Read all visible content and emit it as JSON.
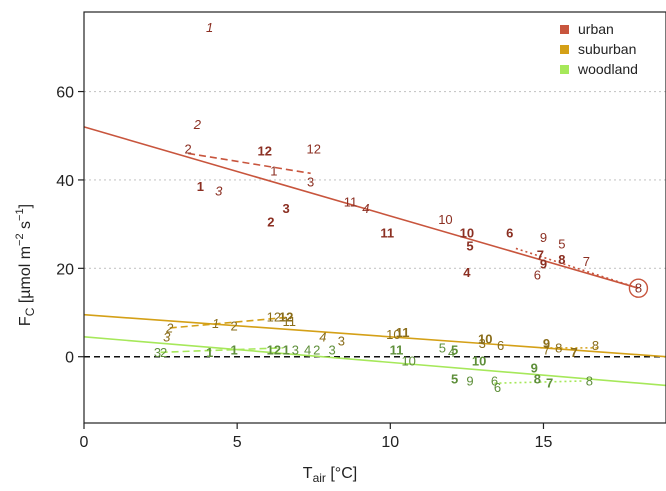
{
  "chart_data": {
    "type": "scatter",
    "xlabel": {
      "main": "T",
      "sub": "air",
      "unit": " [°C]"
    },
    "ylabel": {
      "main": "F",
      "sub": "C",
      "unit_pre": " [µmol m",
      "sup1": "−2",
      "mid": " s",
      "sup2": "−1",
      "unit_post": "]"
    },
    "xlim": [
      0,
      19
    ],
    "ylim": [
      -15,
      78
    ],
    "x_ticks": [
      0,
      5,
      10,
      15
    ],
    "y_ticks": [
      0,
      20,
      40,
      60
    ],
    "y_grid": [
      20,
      40,
      60
    ],
    "zero_line": true,
    "legend": {
      "position": "top-right"
    },
    "series": [
      {
        "name": "urban",
        "color": "#c8553d",
        "text_color": "#8b2f22",
        "points": [
          {
            "m": "1",
            "x": 4.1,
            "y": 74.5,
            "style": "italic"
          },
          {
            "m": "2",
            "x": 3.7,
            "y": 52.5,
            "style": "italic"
          },
          {
            "m": "2",
            "x": 3.4,
            "y": 47.0,
            "style": "normal"
          },
          {
            "m": "12",
            "x": 5.9,
            "y": 46.5,
            "style": "bold"
          },
          {
            "m": "12",
            "x": 7.5,
            "y": 47.0,
            "style": "normal"
          },
          {
            "m": "1",
            "x": 6.2,
            "y": 42.0,
            "style": "normal"
          },
          {
            "m": "3",
            "x": 7.4,
            "y": 39.5,
            "style": "normal"
          },
          {
            "m": "1",
            "x": 3.8,
            "y": 38.5,
            "style": "bold"
          },
          {
            "m": "3",
            "x": 4.4,
            "y": 37.5,
            "style": "italic"
          },
          {
            "m": "11",
            "x": 8.7,
            "y": 35.0,
            "style": "normal"
          },
          {
            "m": "4",
            "x": 9.2,
            "y": 33.5,
            "style": "italic"
          },
          {
            "m": "3",
            "x": 6.6,
            "y": 33.5,
            "style": "bold"
          },
          {
            "m": "2",
            "x": 6.1,
            "y": 30.5,
            "style": "bold"
          },
          {
            "m": "11",
            "x": 9.9,
            "y": 28.0,
            "style": "bold"
          },
          {
            "m": "10",
            "x": 11.8,
            "y": 31.0,
            "style": "normal"
          },
          {
            "m": "10",
            "x": 12.5,
            "y": 28.0,
            "style": "bold"
          },
          {
            "m": "5",
            "x": 12.6,
            "y": 25.0,
            "style": "bold"
          },
          {
            "m": "6",
            "x": 13.9,
            "y": 28.0,
            "style": "bold"
          },
          {
            "m": "9",
            "x": 15.0,
            "y": 27.0,
            "style": "normal"
          },
          {
            "m": "5",
            "x": 15.6,
            "y": 25.5,
            "style": "normal"
          },
          {
            "m": "7",
            "x": 14.9,
            "y": 23.0,
            "style": "bold"
          },
          {
            "m": "9",
            "x": 15.0,
            "y": 21.0,
            "style": "bold"
          },
          {
            "m": "8",
            "x": 15.6,
            "y": 22.0,
            "style": "bold"
          },
          {
            "m": "7",
            "x": 16.4,
            "y": 21.5,
            "style": "normal"
          },
          {
            "m": "6",
            "x": 14.8,
            "y": 18.5,
            "style": "normal"
          },
          {
            "m": "4",
            "x": 12.5,
            "y": 19.0,
            "style": "bold"
          },
          {
            "m": "8",
            "x": 18.1,
            "y": 15.5,
            "style": "normal",
            "circled": true
          }
        ]
      },
      {
        "name": "suburban",
        "color": "#d4a017",
        "text_color": "#8a6d1a",
        "points": [
          {
            "m": "2",
            "x": 2.8,
            "y": 6.5,
            "style": "italic"
          },
          {
            "m": "3",
            "x": 2.7,
            "y": 4.5,
            "style": "italic"
          },
          {
            "m": "1",
            "x": 4.3,
            "y": 7.5,
            "style": "italic"
          },
          {
            "m": "2",
            "x": 4.9,
            "y": 7.0,
            "style": "normal"
          },
          {
            "m": "12",
            "x": 6.2,
            "y": 9.0,
            "style": "normal"
          },
          {
            "m": "12",
            "x": 6.6,
            "y": 9.0,
            "style": "bold"
          },
          {
            "m": "11",
            "x": 6.7,
            "y": 8.0,
            "style": "normal"
          },
          {
            "m": "4",
            "x": 7.8,
            "y": 4.5,
            "style": "italic"
          },
          {
            "m": "3",
            "x": 8.4,
            "y": 3.5,
            "style": "normal"
          },
          {
            "m": "10",
            "x": 10.1,
            "y": 5.0,
            "style": "normal"
          },
          {
            "m": "11",
            "x": 10.4,
            "y": 5.5,
            "style": "bold"
          },
          {
            "m": "10",
            "x": 13.1,
            "y": 4.0,
            "style": "bold"
          },
          {
            "m": "3",
            "x": 13.0,
            "y": 3.0,
            "style": "normal"
          },
          {
            "m": "6",
            "x": 13.6,
            "y": 2.5,
            "style": "normal"
          },
          {
            "m": "9",
            "x": 15.1,
            "y": 3.0,
            "style": "bold"
          },
          {
            "m": "7",
            "x": 15.1,
            "y": 1.5,
            "style": "normal"
          },
          {
            "m": "8",
            "x": 15.5,
            "y": 2.0,
            "style": "normal"
          },
          {
            "m": "7",
            "x": 16.0,
            "y": 1.0,
            "style": "bold"
          },
          {
            "m": "8",
            "x": 16.7,
            "y": 2.5,
            "style": "normal"
          }
        ]
      },
      {
        "name": "woodland",
        "color": "#a6e85a",
        "text_color": "#5e8f3a",
        "points": [
          {
            "m": "3",
            "x": 2.4,
            "y": 1.0,
            "style": "normal"
          },
          {
            "m": "2",
            "x": 2.6,
            "y": 1.0,
            "style": "normal"
          },
          {
            "m": "1",
            "x": 4.1,
            "y": 1.0,
            "style": "bold"
          },
          {
            "m": "1",
            "x": 4.9,
            "y": 1.5,
            "style": "bold"
          },
          {
            "m": "12",
            "x": 6.2,
            "y": 1.5,
            "style": "bold"
          },
          {
            "m": "1",
            "x": 6.6,
            "y": 1.5,
            "style": "bold"
          },
          {
            "m": "3",
            "x": 6.9,
            "y": 1.5,
            "style": "normal"
          },
          {
            "m": "4",
            "x": 7.3,
            "y": 1.5,
            "style": "normal"
          },
          {
            "m": "2",
            "x": 7.6,
            "y": 1.5,
            "style": "normal"
          },
          {
            "m": "3",
            "x": 8.1,
            "y": 1.5,
            "style": "normal"
          },
          {
            "m": "11",
            "x": 10.2,
            "y": 1.5,
            "style": "bold"
          },
          {
            "m": "10",
            "x": 10.6,
            "y": -1.0,
            "style": "normal"
          },
          {
            "m": "5",
            "x": 11.7,
            "y": 2.0,
            "style": "normal"
          },
          {
            "m": "4",
            "x": 12.0,
            "y": 1.0,
            "style": "normal"
          },
          {
            "m": "5",
            "x": 12.1,
            "y": 1.5,
            "style": "bold"
          },
          {
            "m": "10",
            "x": 12.9,
            "y": -1.0,
            "style": "bold"
          },
          {
            "m": "5",
            "x": 12.1,
            "y": -5.0,
            "style": "bold"
          },
          {
            "m": "9",
            "x": 12.6,
            "y": -5.5,
            "style": "normal"
          },
          {
            "m": "6",
            "x": 13.4,
            "y": -5.5,
            "style": "normal"
          },
          {
            "m": "6",
            "x": 13.5,
            "y": -7.0,
            "style": "normal"
          },
          {
            "m": "9",
            "x": 14.7,
            "y": -2.5,
            "style": "bold"
          },
          {
            "m": "8",
            "x": 14.8,
            "y": -5.0,
            "style": "bold"
          },
          {
            "m": "7",
            "x": 15.2,
            "y": -6.0,
            "style": "bold"
          },
          {
            "m": "8",
            "x": 16.5,
            "y": -5.5,
            "style": "normal"
          }
        ]
      }
    ],
    "fit_lines": [
      {
        "series": "urban",
        "x": [
          0,
          18.1
        ],
        "y": [
          52.0,
          15.5
        ],
        "style": "solid"
      },
      {
        "series": "suburban",
        "x": [
          0,
          19
        ],
        "y": [
          9.5,
          0.0
        ],
        "style": "solid"
      },
      {
        "series": "woodland",
        "x": [
          0,
          19
        ],
        "y": [
          4.5,
          -6.5
        ],
        "style": "solid"
      },
      {
        "series": "urban",
        "x": [
          3.4,
          7.4
        ],
        "y": [
          46.0,
          41.5
        ],
        "style": "dashed"
      },
      {
        "series": "urban",
        "x": [
          14.1,
          18.1
        ],
        "y": [
          24.5,
          15.5
        ],
        "style": "dotted"
      },
      {
        "series": "suburban",
        "x": [
          2.8,
          6.8
        ],
        "y": [
          6.5,
          9.0
        ],
        "style": "dashed"
      },
      {
        "series": "suburban",
        "x": [
          14.9,
          16.8
        ],
        "y": [
          2.0,
          2.0
        ],
        "style": "dotted"
      },
      {
        "series": "woodland",
        "x": [
          2.5,
          6.5
        ],
        "y": [
          1.0,
          2.0
        ],
        "style": "dashed"
      },
      {
        "series": "woodland",
        "x": [
          13.4,
          16.3
        ],
        "y": [
          -6.0,
          -5.5
        ],
        "style": "dotted"
      }
    ]
  }
}
